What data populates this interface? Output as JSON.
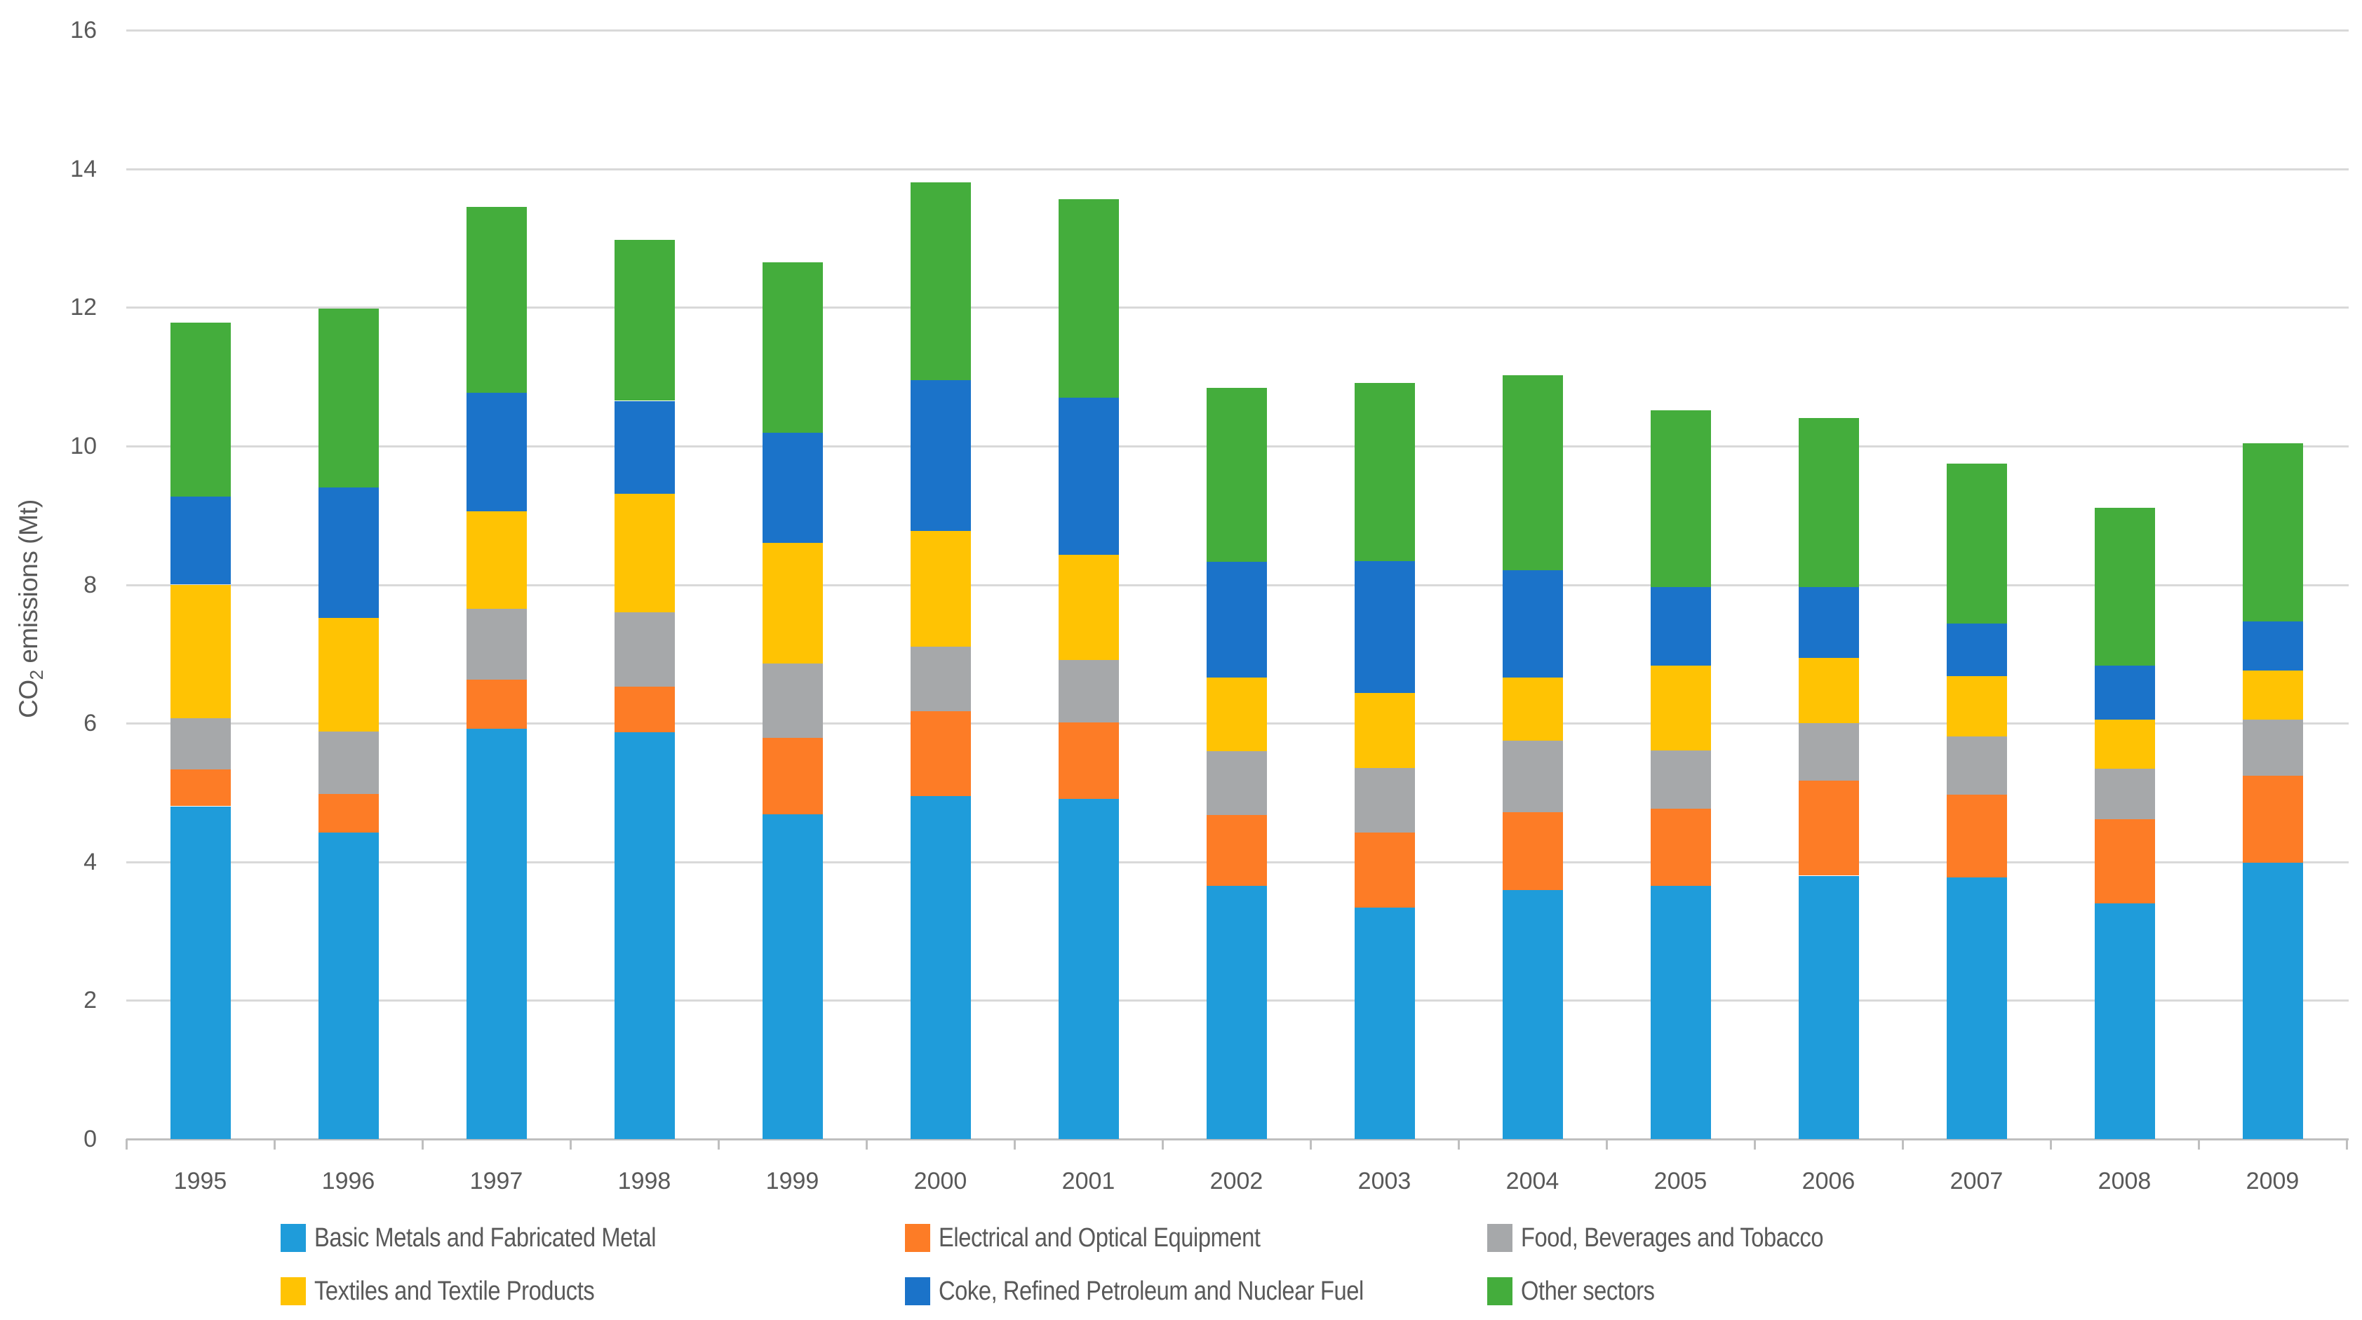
{
  "figure": {
    "background": "#ffffff",
    "text_color": "#595959",
    "grid_color": "#d9d9d9",
    "axis_color": "#bfbfbf"
  },
  "chart_data": {
    "type": "bar",
    "stacked": true,
    "title": "",
    "xlabel": "",
    "ylabel": "CO₂ emissions (Mt)",
    "ylabel_parts": {
      "prefix": "CO",
      "sub": "2",
      "suffix": " emissions (Mt)"
    },
    "ylim": [
      0,
      16
    ],
    "y_ticks": [
      0,
      2,
      4,
      6,
      8,
      10,
      12,
      14,
      16
    ],
    "grid": true,
    "legend_position": "bottom",
    "categories": [
      "1995",
      "1996",
      "1997",
      "1998",
      "1999",
      "2000",
      "2001",
      "2002",
      "2003",
      "2004",
      "2005",
      "2006",
      "2007",
      "2008",
      "2009"
    ],
    "series": [
      {
        "name": "Basic Metals and Fabricated Metal",
        "color": "#1f9cda",
        "values": [
          4.8,
          4.42,
          5.92,
          5.87,
          4.69,
          4.95,
          4.91,
          3.66,
          3.34,
          3.6,
          3.66,
          3.8,
          3.78,
          3.4,
          3.99
        ]
      },
      {
        "name": "Electrical and Optical Equipment",
        "color": "#fd7c26",
        "values": [
          0.53,
          0.56,
          0.71,
          0.66,
          1.1,
          1.22,
          1.1,
          1.02,
          1.08,
          1.12,
          1.11,
          1.37,
          1.19,
          1.21,
          1.25
        ]
      },
      {
        "name": "Food, Beverages and Tobacco",
        "color": "#a6a8aa",
        "values": [
          0.75,
          0.9,
          1.02,
          1.07,
          1.07,
          0.93,
          0.9,
          0.92,
          0.94,
          1.03,
          0.84,
          0.83,
          0.84,
          0.73,
          0.81
        ]
      },
      {
        "name": "Textiles and Textile Products",
        "color": "#ffc303",
        "values": [
          1.92,
          1.64,
          1.41,
          1.71,
          1.74,
          1.67,
          1.52,
          1.06,
          1.08,
          0.91,
          1.22,
          0.94,
          0.87,
          0.71,
          0.71
        ]
      },
      {
        "name": "Coke, Refined Petroleum and Nuclear Fuel",
        "color": "#1b73c9",
        "values": [
          1.27,
          1.88,
          1.71,
          1.34,
          1.59,
          2.18,
          2.27,
          1.67,
          1.9,
          1.55,
          1.13,
          1.02,
          0.76,
          0.78,
          0.71
        ]
      },
      {
        "name": "Other sectors",
        "color": "#44ad3c",
        "values": [
          2.51,
          2.58,
          2.68,
          2.32,
          2.46,
          2.85,
          2.86,
          2.51,
          2.57,
          2.81,
          2.55,
          2.44,
          2.31,
          2.28,
          2.57
        ]
      }
    ],
    "totals": [
      11.78,
      11.98,
      13.45,
      12.97,
      12.65,
      13.8,
      13.56,
      10.84,
      10.91,
      11.02,
      10.51,
      10.4,
      9.75,
      9.11,
      10.04
    ],
    "legend_rows": [
      [
        0,
        1,
        2
      ],
      [
        3,
        4,
        5
      ]
    ]
  }
}
